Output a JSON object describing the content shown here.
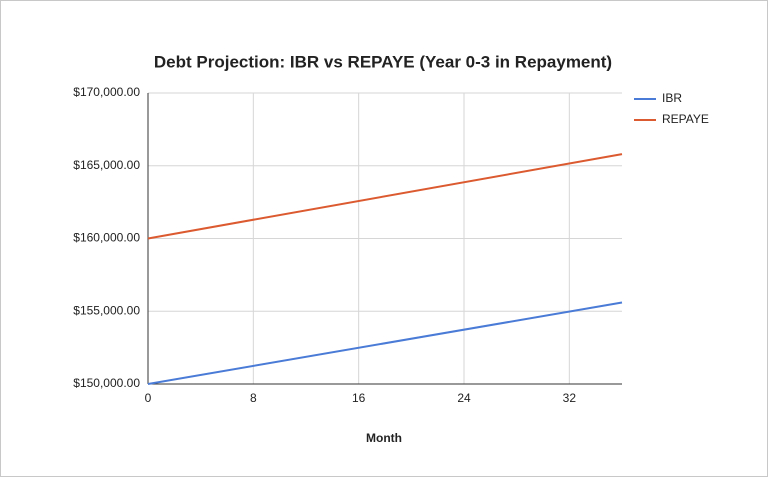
{
  "chart_data": {
    "type": "line",
    "title": "Debt Projection: IBR vs REPAYE (Year 0-3 in Repayment)",
    "x_label": "Month",
    "x": [
      0,
      36
    ],
    "series": [
      {
        "name": "IBR",
        "color": "#4a7bd6",
        "values": [
          150000,
          155600
        ]
      },
      {
        "name": "REPAYE",
        "color": "#dc5a30",
        "values": [
          160000,
          165800
        ]
      }
    ],
    "xlim": [
      0,
      36
    ],
    "xticks": [
      0,
      8,
      16,
      24,
      32
    ],
    "ylim": [
      150000,
      170000
    ],
    "yticks": [
      {
        "value": 150000,
        "label": "$150,000.00"
      },
      {
        "value": 155000,
        "label": "$155,000.00"
      },
      {
        "value": 160000,
        "label": "$160,000.00"
      },
      {
        "value": 165000,
        "label": "$165,000.00"
      },
      {
        "value": 170000,
        "label": "$170,000.00"
      }
    ],
    "grid": true,
    "legend": "right"
  }
}
